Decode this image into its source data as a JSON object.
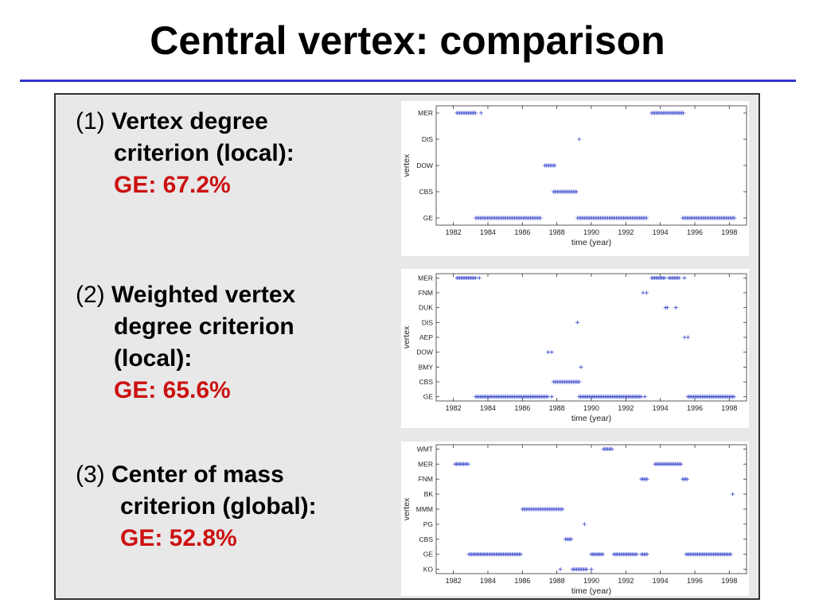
{
  "title": "Central vertex: comparison",
  "criteria": [
    {
      "num": "(1)",
      "label_lines": [
        "Vertex degree",
        "criterion (local):"
      ],
      "ge": "GE: 67.2%"
    },
    {
      "num": "(2)",
      "label_lines": [
        "Weighted vertex",
        "degree criterion",
        "(local):"
      ],
      "ge": "GE: 65.6%"
    },
    {
      "num": "(3)",
      "label_lines": [
        "Center of mass",
        "criterion (global):"
      ],
      "ge": "GE: 52.8%"
    }
  ],
  "chart_data": [
    {
      "type": "scatter",
      "marker": "+",
      "color": "#3344cc",
      "xlabel": "time (year)",
      "ylabel": "vertex",
      "xlim": [
        1981,
        1999
      ],
      "xticks": [
        "1982",
        "1984",
        "1986",
        "1988",
        "1990",
        "1992",
        "1994",
        "1996",
        "1998"
      ],
      "categories": [
        "GE",
        "CBS",
        "DOW",
        "DIS",
        "MER"
      ],
      "series": [
        {
          "category": "MER",
          "ranges": [
            [
              1982.2,
              1983.3
            ]
          ],
          "points": [
            1983.6
          ]
        },
        {
          "category": "DIS",
          "ranges": [],
          "points": [
            1989.3
          ]
        },
        {
          "category": "DOW",
          "ranges": [
            [
              1987.3,
              1987.9
            ]
          ],
          "points": []
        },
        {
          "category": "CBS",
          "ranges": [
            [
              1987.8,
              1989.2
            ]
          ],
          "points": []
        },
        {
          "category": "GE",
          "ranges": [
            [
              1983.3,
              1987.1
            ],
            [
              1989.2,
              1993.2
            ],
            [
              1995.3,
              1998.3
            ]
          ],
          "points": []
        },
        {
          "category": "MER",
          "ranges": [
            [
              1993.5,
              1995.4
            ]
          ],
          "points": []
        }
      ]
    },
    {
      "type": "scatter",
      "marker": "+",
      "color": "#3344cc",
      "xlabel": "time (year)",
      "ylabel": "vertex",
      "xlim": [
        1981,
        1999
      ],
      "xticks": [
        "1982",
        "1984",
        "1986",
        "1988",
        "1990",
        "1992",
        "1994",
        "1996",
        "1998"
      ],
      "categories": [
        "GE",
        "CBS",
        "BMY",
        "DOW",
        "AEP",
        "DIS",
        "DUK",
        "FNM",
        "MER"
      ],
      "series": [
        {
          "category": "MER",
          "ranges": [
            [
              1982.2,
              1983.3
            ],
            [
              1993.5,
              1994.3
            ],
            [
              1994.5,
              1995.1
            ]
          ],
          "points": [
            1983.5,
            1995.4
          ]
        },
        {
          "category": "FNM",
          "ranges": [],
          "points": [
            1993.0,
            1993.2
          ]
        },
        {
          "category": "DUK",
          "ranges": [],
          "points": [
            1994.3,
            1994.4,
            1994.9
          ]
        },
        {
          "category": "DIS",
          "ranges": [],
          "points": [
            1989.2
          ]
        },
        {
          "category": "AEP",
          "ranges": [],
          "points": [
            1995.4,
            1995.6
          ]
        },
        {
          "category": "DOW",
          "ranges": [],
          "points": [
            1987.5,
            1987.7
          ]
        },
        {
          "category": "BMY",
          "ranges": [],
          "points": [
            1989.4
          ]
        },
        {
          "category": "CBS",
          "ranges": [
            [
              1987.8,
              1989.3
            ]
          ],
          "points": []
        },
        {
          "category": "GE",
          "ranges": [
            [
              1983.3,
              1987.5
            ],
            [
              1989.3,
              1992.9
            ],
            [
              1995.6,
              1998.3
            ]
          ],
          "points": [
            1987.7,
            1993.1
          ]
        }
      ]
    },
    {
      "type": "scatter",
      "marker": "+",
      "color": "#3344cc",
      "xlabel": "time (year)",
      "ylabel": "vertex",
      "xlim": [
        1981,
        1999
      ],
      "xticks": [
        "1982",
        "1984",
        "1986",
        "1988",
        "1990",
        "1992",
        "1994",
        "1996",
        "1998"
      ],
      "categories": [
        "KO",
        "GE",
        "CBS",
        "PG",
        "MMM",
        "BK",
        "FNM",
        "MER",
        "WMT"
      ],
      "series": [
        {
          "category": "WMT",
          "ranges": [
            [
              1990.7,
              1991.2
            ]
          ],
          "points": []
        },
        {
          "category": "MER",
          "ranges": [
            [
              1982.1,
              1982.9
            ],
            [
              1993.7,
              1995.2
            ]
          ],
          "points": []
        },
        {
          "category": "FNM",
          "ranges": [
            [
              1992.9,
              1993.3
            ],
            [
              1995.3,
              1995.6
            ]
          ],
          "points": []
        },
        {
          "category": "BK",
          "ranges": [],
          "points": [
            1998.2
          ]
        },
        {
          "category": "MMM",
          "ranges": [
            [
              1986.0,
              1988.4
            ]
          ],
          "points": []
        },
        {
          "category": "PG",
          "ranges": [],
          "points": [
            1989.6
          ]
        },
        {
          "category": "CBS",
          "ranges": [
            [
              1988.5,
              1988.9
            ]
          ],
          "points": []
        },
        {
          "category": "GE",
          "ranges": [
            [
              1982.9,
              1985.9
            ],
            [
              1990.0,
              1990.7
            ],
            [
              1991.3,
              1992.7
            ],
            [
              1992.9,
              1993.3
            ],
            [
              1995.5,
              1998.1
            ]
          ],
          "points": []
        },
        {
          "category": "KO",
          "ranges": [
            [
              1988.9,
              1989.8
            ]
          ],
          "points": [
            1988.2,
            1990.0
          ]
        }
      ]
    }
  ]
}
